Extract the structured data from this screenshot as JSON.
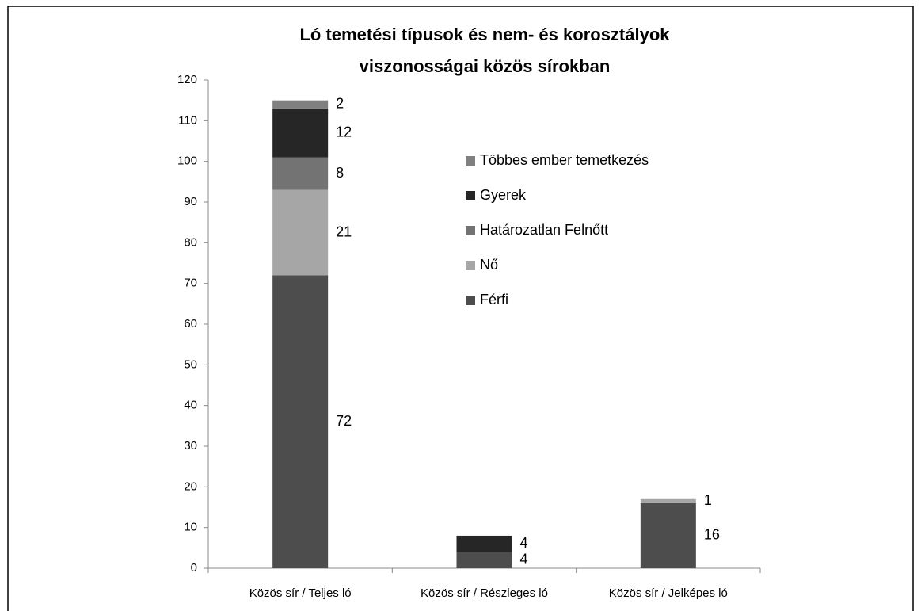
{
  "chart_data": {
    "type": "stacked_bar",
    "title": [
      "Ló temetési típusok és nem- és korosztályok",
      "viszonosságai közös sírokban"
    ],
    "categories": [
      "Közös sír / Teljes ló",
      "Közös sír / Részleges ló",
      "Közös sír / Jelképes ló"
    ],
    "series": [
      {
        "name": "Férfi",
        "color": "#4d4d4d",
        "values": [
          72,
          4,
          16
        ]
      },
      {
        "name": "Nő",
        "color": "#a6a6a6",
        "values": [
          21,
          null,
          1
        ]
      },
      {
        "name": "Határozatlan Felnőtt",
        "color": "#737373",
        "values": [
          8,
          null,
          null
        ]
      },
      {
        "name": "Gyerek",
        "color": "#262626",
        "values": [
          12,
          4,
          null
        ]
      },
      {
        "name": "Többes  ember temetkezés",
        "color": "#808080",
        "values": [
          2,
          null,
          null
        ]
      }
    ],
    "ylim": [
      0,
      120
    ],
    "yticks": [
      0,
      10,
      20,
      30,
      40,
      50,
      60,
      70,
      80,
      90,
      100,
      110,
      120
    ],
    "legend": "right"
  }
}
